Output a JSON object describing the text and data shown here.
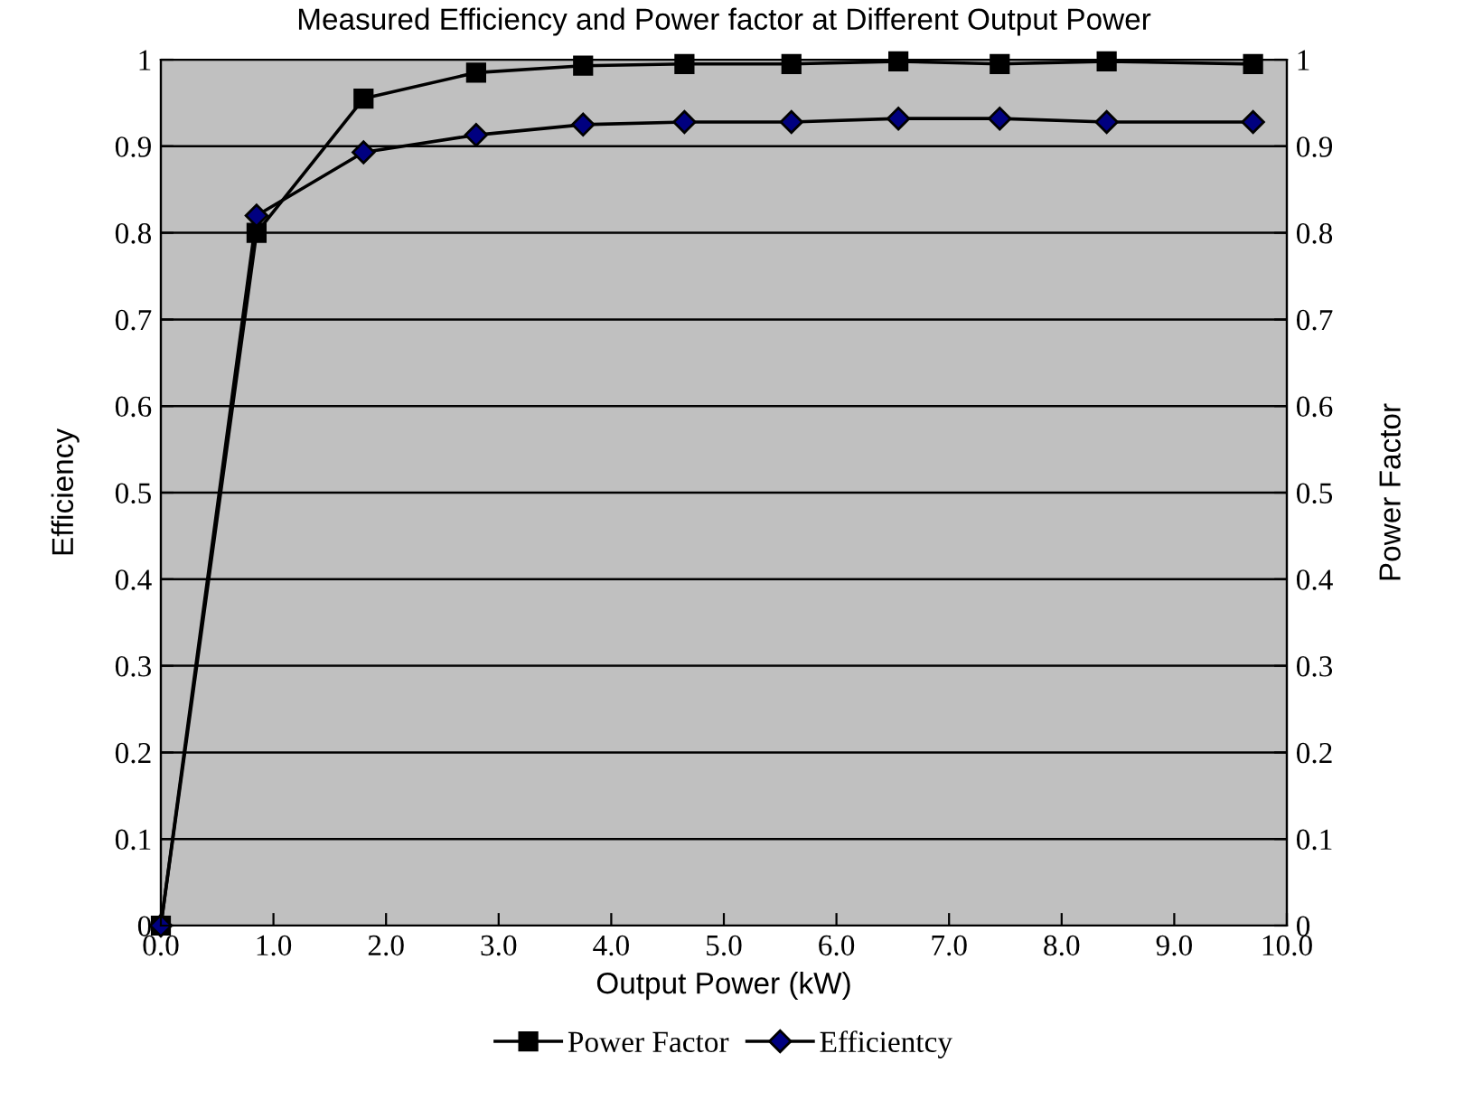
{
  "chart_data": {
    "type": "line",
    "title": "Measured Efficiency and Power factor at Different Output Power",
    "xlabel": "Output Power (kW)",
    "ylabel": "Efficiency",
    "y2label": "Power Factor",
    "xlim": [
      0,
      10
    ],
    "xticks": [
      {
        "value": 0,
        "label": "0.0"
      },
      {
        "value": 1,
        "label": "1.0"
      },
      {
        "value": 2,
        "label": "2.0"
      },
      {
        "value": 3,
        "label": "3.0"
      },
      {
        "value": 4,
        "label": "4.0"
      },
      {
        "value": 5,
        "label": "5.0"
      },
      {
        "value": 6,
        "label": "6.0"
      },
      {
        "value": 7,
        "label": "7.0"
      },
      {
        "value": 8,
        "label": "8.0"
      },
      {
        "value": 9,
        "label": "9.0"
      },
      {
        "value": 10,
        "label": "10.0"
      }
    ],
    "ylim": [
      0,
      1
    ],
    "yticks": [
      0,
      0.1,
      0.2,
      0.3,
      0.4,
      0.5,
      0.6,
      0.7,
      0.8,
      0.9,
      1
    ],
    "y2lim": [
      0,
      1
    ],
    "y2ticks": [
      0,
      0.1,
      0.2,
      0.3,
      0.4,
      0.5,
      0.6,
      0.7,
      0.8,
      0.9,
      1
    ],
    "grid": "y",
    "legend": "bottom",
    "line_style": "solid",
    "series": [
      {
        "name": "Power Factor",
        "color": "#000000",
        "marker": "square",
        "x": [
          0,
          0.85,
          1.8,
          2.8,
          3.75,
          4.65,
          5.6,
          6.55,
          7.45,
          8.4,
          9.7
        ],
        "values": [
          0,
          0.8,
          0.955,
          0.985,
          0.993,
          0.995,
          0.995,
          0.998,
          0.995,
          0.998,
          0.995
        ]
      },
      {
        "name": "Efficientcy",
        "color": "#000080",
        "marker": "diamond",
        "x": [
          0,
          0.85,
          1.8,
          2.8,
          3.75,
          4.65,
          5.6,
          6.55,
          7.45,
          8.4,
          9.7
        ],
        "values": [
          0,
          0.82,
          0.893,
          0.913,
          0.925,
          0.928,
          0.928,
          0.932,
          0.932,
          0.928,
          0.928
        ]
      }
    ]
  }
}
